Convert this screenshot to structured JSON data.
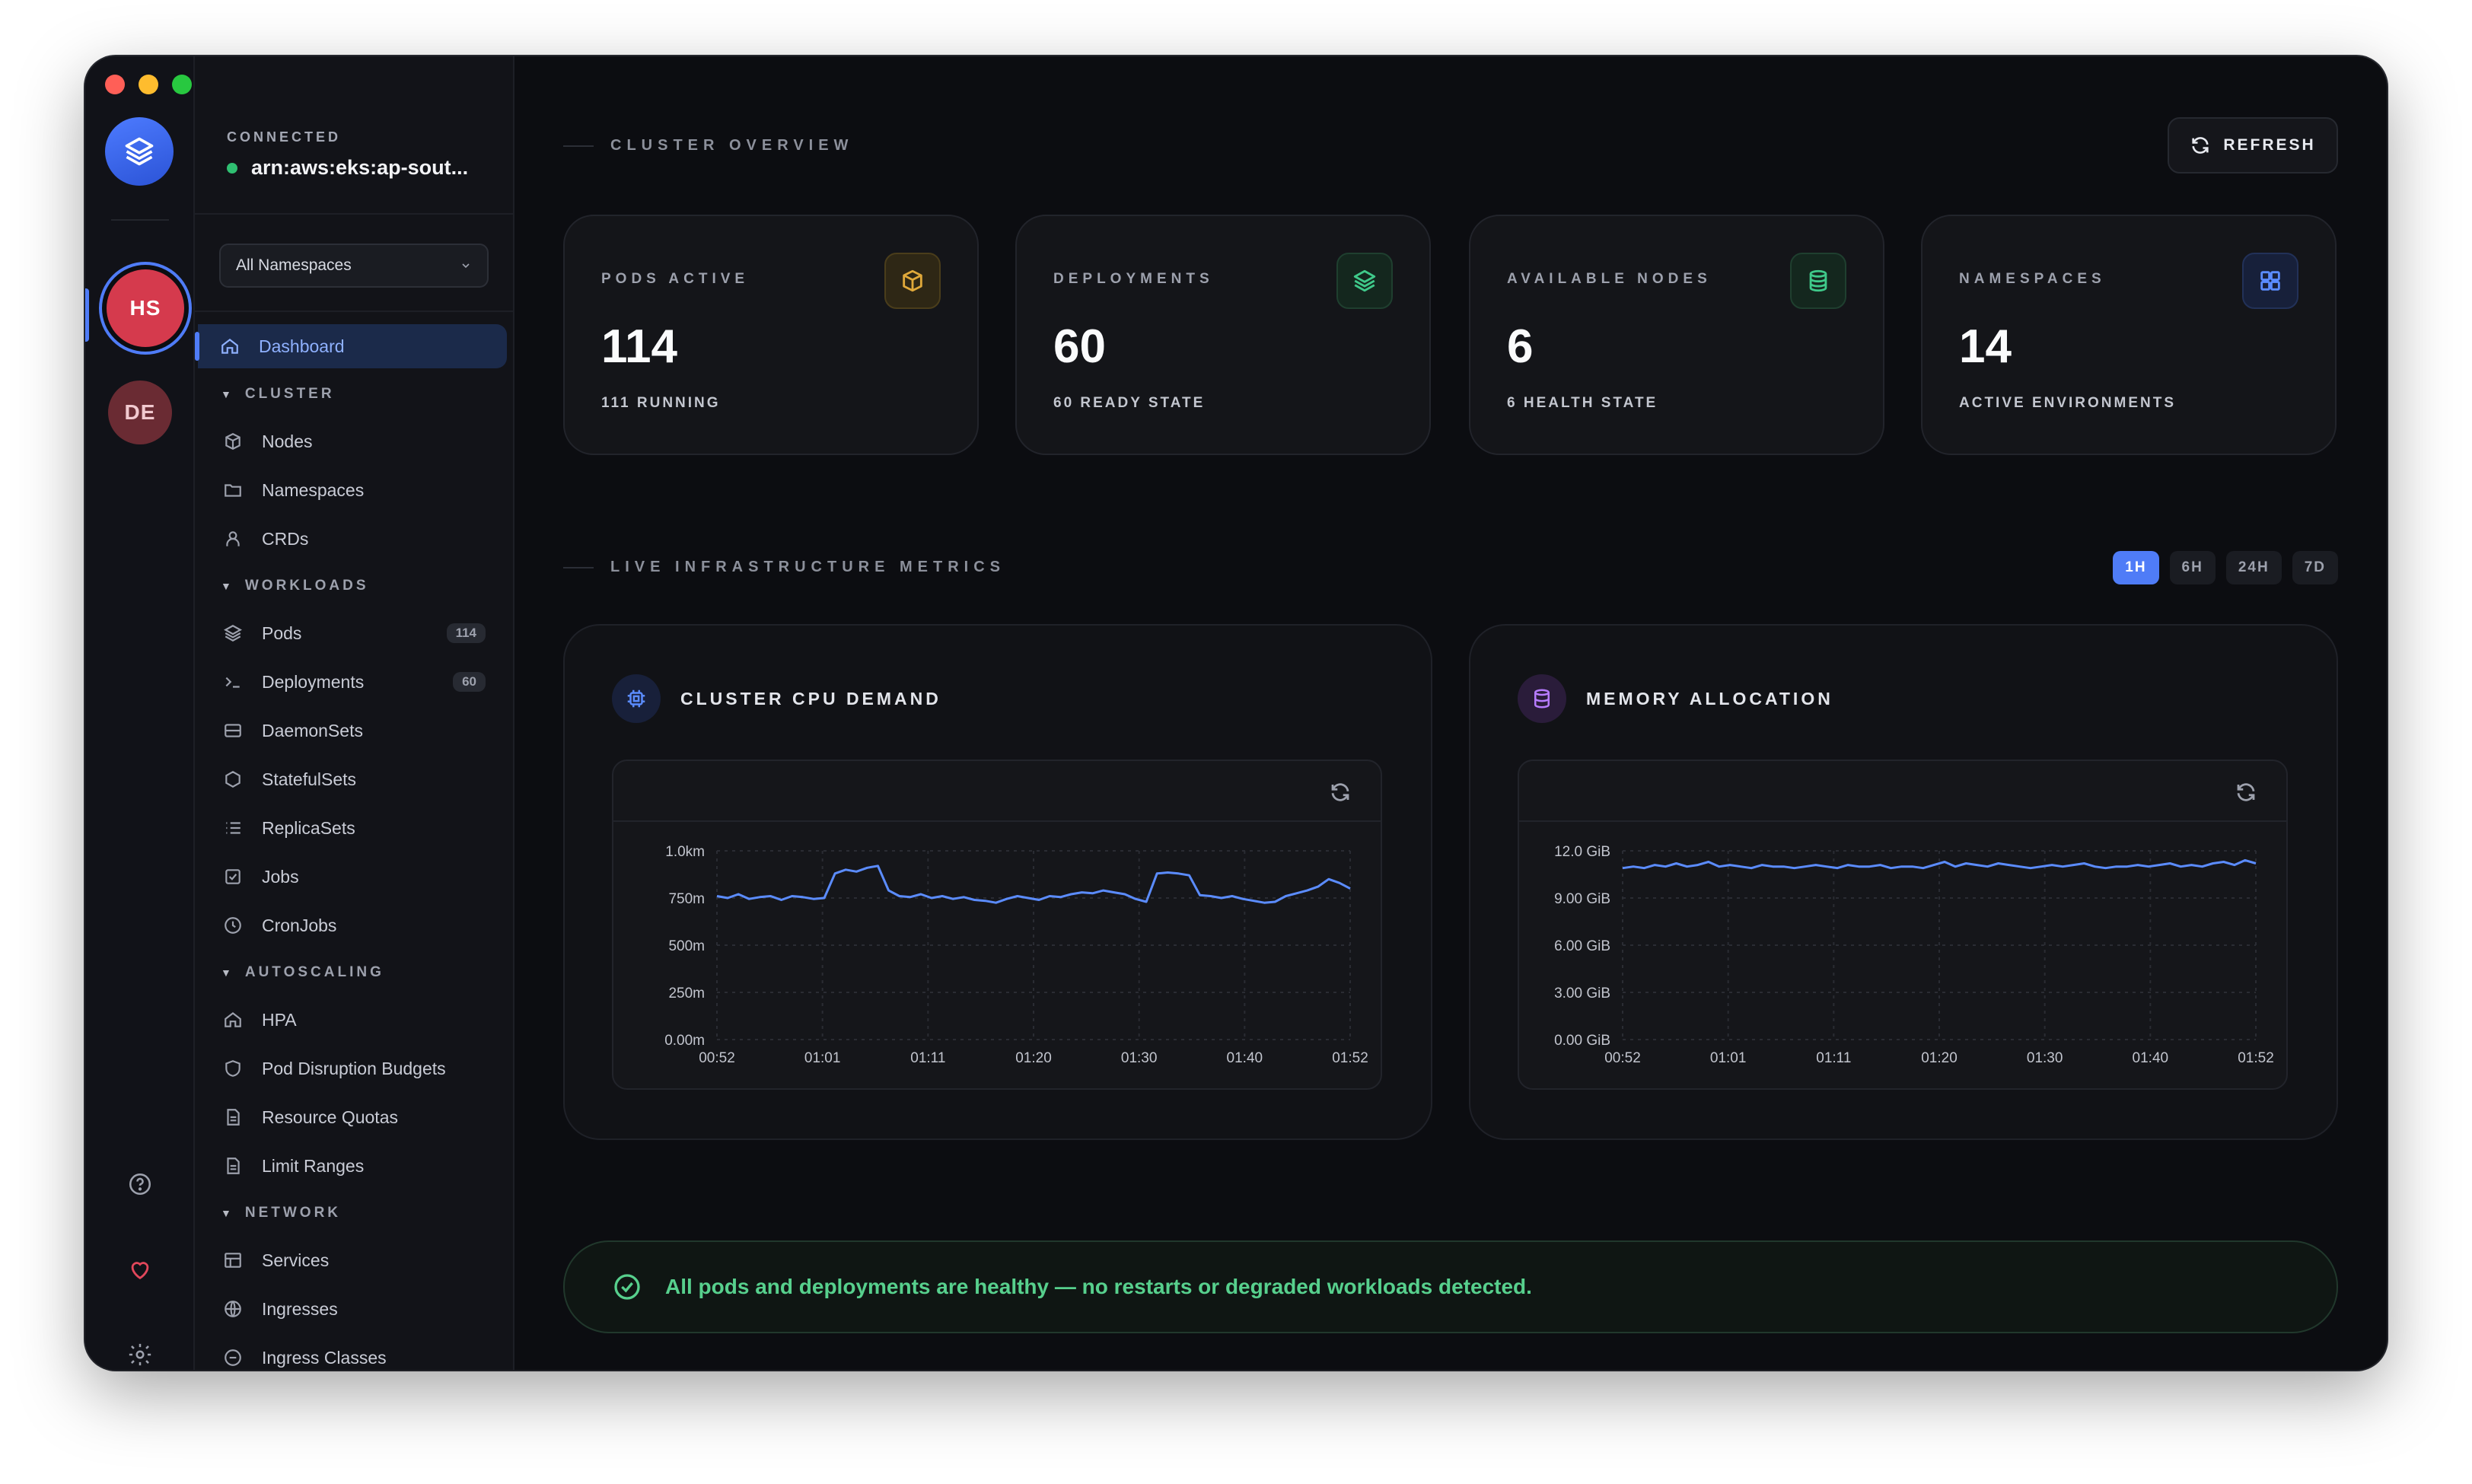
{
  "window": {
    "traffic_lights": [
      "close",
      "minimize",
      "maximize"
    ]
  },
  "rail": {
    "logo_icon": "layers-icon",
    "workspaces": [
      {
        "initials": "HS",
        "active": true,
        "color": "#d53a4d"
      },
      {
        "initials": "DE",
        "active": false,
        "color": "#6a2b33"
      }
    ],
    "bottom_icons": [
      "help-icon",
      "heart-icon",
      "settings-icon"
    ]
  },
  "sidebar": {
    "connection_label": "CONNECTED",
    "cluster_name": "arn:aws:eks:ap-sout...",
    "namespace_select": "All Namespaces",
    "dashboard_label": "Dashboard",
    "sections": {
      "cluster": "CLUSTER",
      "workloads": "WORKLOADS",
      "autoscaling": "AUTOSCALING",
      "network": "NETWORK"
    },
    "items": {
      "nodes": "Nodes",
      "namespaces": "Namespaces",
      "crds": "CRDs",
      "pods": "Pods",
      "pods_count": "114",
      "deployments": "Deployments",
      "deployments_count": "60",
      "daemonsets": "DaemonSets",
      "statefulsets": "StatefulSets",
      "replicasets": "ReplicaSets",
      "jobs": "Jobs",
      "cronjobs": "CronJobs",
      "hpa": "HPA",
      "pdb": "Pod Disruption Budgets",
      "quotas": "Resource Quotas",
      "limits": "Limit Ranges",
      "services": "Services",
      "ingresses": "Ingresses",
      "ingress_classes": "Ingress Classes"
    }
  },
  "overview": {
    "title": "CLUSTER OVERVIEW",
    "refresh_label": "REFRESH",
    "stats": [
      {
        "label": "PODS ACTIVE",
        "value": "114",
        "sub": "111 RUNNING",
        "icon": "box-icon",
        "accent": "#e0a93a"
      },
      {
        "label": "DEPLOYMENTS",
        "value": "60",
        "sub": "60 READY STATE",
        "icon": "layers-icon",
        "accent": "#3fc98a"
      },
      {
        "label": "AVAILABLE NODES",
        "value": "6",
        "sub": "6 HEALTH STATE",
        "icon": "database-icon",
        "accent": "#3fc98a"
      },
      {
        "label": "NAMESPACES",
        "value": "14",
        "sub": "ACTIVE ENVIRONMENTS",
        "icon": "grid-icon",
        "accent": "#5b8cff"
      }
    ]
  },
  "metrics": {
    "title": "LIVE INFRASTRUCTURE METRICS",
    "ranges": [
      "1H",
      "6H",
      "24H",
      "7D"
    ],
    "selected_range": "1H",
    "cpu_title": "CLUSTER CPU DEMAND",
    "mem_title": "MEMORY ALLOCATION"
  },
  "chart_data": [
    {
      "type": "line",
      "title": "CLUSTER CPU DEMAND",
      "color": "#5b8cff",
      "x_ticks": [
        "00:52",
        "01:01",
        "01:11",
        "01:20",
        "01:30",
        "01:40",
        "01:52"
      ],
      "y_ticks": [
        "1.0km",
        "750m",
        "500m",
        "250m",
        "0.00m"
      ],
      "ylim": [
        0,
        1000
      ],
      "grid": true,
      "series": [
        {
          "values": [
            760,
            750,
            770,
            745,
            755,
            760,
            740,
            760,
            755,
            745,
            750,
            880,
            900,
            890,
            910,
            920,
            790,
            760,
            755,
            770,
            750,
            760,
            745,
            755,
            740,
            735,
            725,
            745,
            760,
            750,
            740,
            760,
            755,
            770,
            780,
            775,
            790,
            780,
            770,
            745,
            730,
            880,
            885,
            880,
            870,
            765,
            760,
            750,
            760,
            745,
            735,
            725,
            730,
            760,
            775,
            790,
            810,
            850,
            830,
            800
          ]
        }
      ]
    },
    {
      "type": "line",
      "title": "MEMORY ALLOCATION",
      "color": "#5b8cff",
      "x_ticks": [
        "00:52",
        "01:01",
        "01:11",
        "01:20",
        "01:30",
        "01:40",
        "01:52"
      ],
      "y_ticks": [
        "12.0 GiB",
        "9.00 GiB",
        "6.00 GiB",
        "3.00 GiB",
        "0.00 GiB"
      ],
      "ylim": [
        0,
        12
      ],
      "grid": true,
      "series": [
        {
          "values": [
            10.9,
            11.0,
            10.9,
            11.1,
            11.0,
            11.2,
            11.0,
            11.1,
            11.3,
            11.0,
            11.1,
            11.0,
            10.9,
            11.1,
            11.0,
            11.0,
            10.9,
            11.0,
            11.1,
            11.0,
            10.9,
            11.1,
            11.0,
            11.0,
            11.1,
            10.9,
            11.0,
            11.0,
            10.9,
            11.1,
            11.3,
            11.0,
            11.2,
            11.1,
            11.0,
            11.2,
            11.1,
            11.0,
            10.9,
            11.0,
            11.1,
            11.0,
            11.1,
            11.2,
            11.0,
            10.9,
            11.0,
            11.0,
            11.1,
            11.0,
            11.1,
            11.2,
            11.0,
            11.1,
            11.0,
            11.2,
            11.3,
            11.1,
            11.4,
            11.2
          ]
        }
      ]
    }
  ],
  "health": {
    "message": "All pods and deployments are healthy — no restarts or degraded workloads detected.",
    "icon": "check-circle-icon",
    "color": "#57d08d"
  }
}
